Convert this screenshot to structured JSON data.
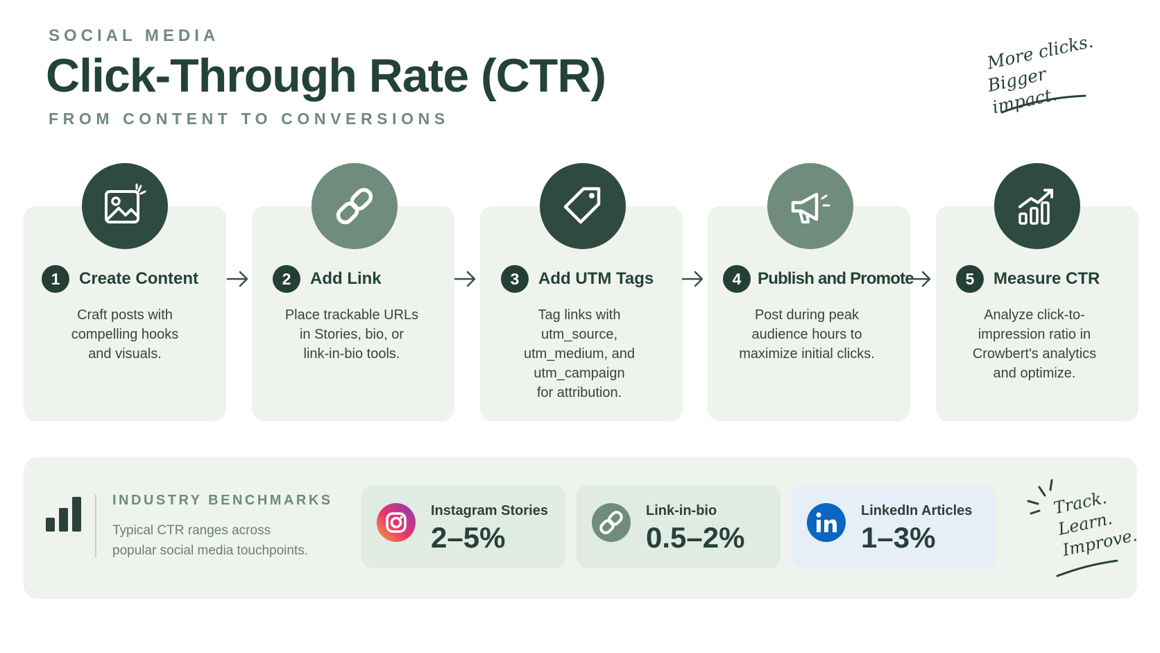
{
  "header": {
    "eyebrow": "SOCIAL MEDIA",
    "title": "Click-Through Rate (CTR)",
    "subtitle": "FROM CONTENT TO CONVERSIONS",
    "note_line1": "More clicks.",
    "note_line2": "Bigger impact."
  },
  "steps": [
    {
      "number": "1",
      "title": "Create Content",
      "icon": "image-icon",
      "desc": [
        "Craft posts with",
        "compelling hooks",
        "and visuals."
      ]
    },
    {
      "number": "2",
      "title": "Add Link",
      "icon": "link-icon",
      "desc": [
        "Place trackable URLs",
        "in Stories, bio, or",
        "link-in-bio tools."
      ]
    },
    {
      "number": "3",
      "title": "Add UTM Tags",
      "icon": "tag-icon",
      "desc": [
        "Tag links with",
        "utm_source,",
        "utm_medium, and",
        "utm_campaign",
        "for attribution."
      ]
    },
    {
      "number": "4",
      "title": "Publish and Promote",
      "icon": "megaphone-icon",
      "desc": [
        "Post during peak",
        "audience hours to",
        "maximize initial clicks."
      ]
    },
    {
      "number": "5",
      "title": "Measure CTR",
      "icon": "growth-chart-icon",
      "desc": [
        "Analyze click-to-",
        "impression ratio in",
        "Crowbert's analytics",
        "and optimize."
      ]
    }
  ],
  "benchmarks": {
    "title": "INDUSTRY BENCHMARKS",
    "desc_line1": "Typical CTR ranges across",
    "desc_line2": "popular social media touchpoints.",
    "items": [
      {
        "name": "Instagram Stories",
        "value": "2–5%",
        "icon": "instagram-icon"
      },
      {
        "name": "Link-in-bio",
        "value": "0.5–2%",
        "icon": "link-icon"
      },
      {
        "name": "LinkedIn Articles",
        "value": "1–3%",
        "icon": "linkedin-icon"
      }
    ],
    "note_line1": "Track.",
    "note_line2": "Learn.",
    "note_line3": "Improve."
  },
  "colors": {
    "dark_green": "#2f4a41",
    "mid_green": "#6f8c7d",
    "card_bg": "#eef3ed",
    "linkedin_blue": "#0a66c2"
  }
}
